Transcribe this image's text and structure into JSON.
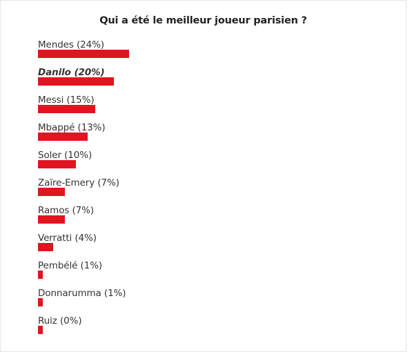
{
  "poll": {
    "title": "Qui a été le meilleur joueur parisien ?",
    "bar_color": "#e0151f",
    "options": [
      {
        "label": "Mendes (24%)",
        "percent": 24,
        "selected": false
      },
      {
        "label": "Danilo (20%)",
        "percent": 20,
        "selected": true
      },
      {
        "label": "Messi (15%)",
        "percent": 15,
        "selected": false
      },
      {
        "label": "Mbappé (13%)",
        "percent": 13,
        "selected": false
      },
      {
        "label": "Soler (10%)",
        "percent": 10,
        "selected": false
      },
      {
        "label": "Zaïre-Emery (7%)",
        "percent": 7,
        "selected": false
      },
      {
        "label": "Ramos (7%)",
        "percent": 7,
        "selected": false
      },
      {
        "label": "Verratti (4%)",
        "percent": 4,
        "selected": false
      },
      {
        "label": "Pembélé (1%)",
        "percent": 1,
        "selected": false
      },
      {
        "label": "Donnarumma (1%)",
        "percent": 1,
        "selected": false
      },
      {
        "label": "Ruiz (0%)",
        "percent": 0,
        "selected": false
      }
    ]
  }
}
